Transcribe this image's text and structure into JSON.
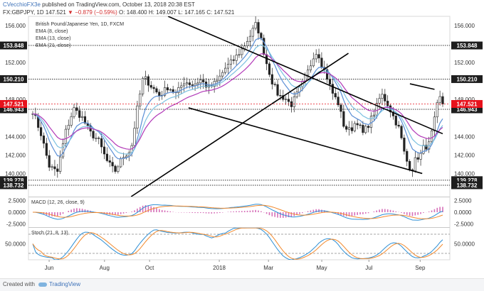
{
  "header": {
    "line1_user": "CVecchioFX3e",
    "line1_rest": "published on TradingView.com, October 13, 2018 20:38 EST",
    "symbol": "FX:GBPJPY, 1D",
    "last": "147.521",
    "change": "▼ −0.879 (−0.59%)",
    "ohlc": "O: 148.400 H: 149.007 L: 147.165 C: 147.521"
  },
  "legend": {
    "title": "British Pound/Japanese Yen, 1D, FXCM",
    "ema8": "EMA (8, close)",
    "ema13": "EMA (13, close)",
    "ema21": "EMA (21, close)"
  },
  "macd_label": "MACD (12, 26, close, 9)",
  "stoch_label": "Stoch (21, 8, 13)",
  "footer": {
    "created_with": "Created with",
    "brand": "TradingView"
  },
  "colors": {
    "candle": "#222222",
    "ema8": "#5b8fd6",
    "ema13": "#7cc0e0",
    "ema21": "#b23ab8",
    "macd_line": "#2d8fd5",
    "macd_signal": "#f28a2e",
    "macd_hist": "#d66fb8",
    "stoch_k": "#2d8fd5",
    "stoch_d": "#f28a2e",
    "current_price": "#e8121c",
    "level_box": "#222222",
    "trendline": "#000000"
  },
  "chart_data": [
    {
      "type": "candlestick",
      "x_ticks": [
        "Jun",
        "Aug",
        "Oct",
        "2018",
        "Mar",
        "May",
        "Jul",
        "Sep"
      ],
      "y_ticks": [
        "156.000",
        "152.000",
        "148.000",
        "144.000",
        "142.000",
        "140.000"
      ],
      "ylim": [
        137.5,
        157.0
      ],
      "price_levels": [
        {
          "value": 153.848,
          "label": "153.848"
        },
        {
          "value": 150.21,
          "label": "150.210"
        },
        {
          "value": 146.943,
          "label": "146.943"
        },
        {
          "value": 139.278,
          "label": "139.278"
        },
        {
          "value": 138.732,
          "label": "138.732"
        }
      ],
      "current_price": {
        "value": 147.521,
        "label": "147.521"
      },
      "trendlines": [
        {
          "from": [
            0.24,
            137.5
          ],
          "to": [
            0.77,
            153.0
          ]
        },
        {
          "from": [
            0.33,
            157.0
          ],
          "to": [
            1.0,
            144.3
          ]
        },
        {
          "from": [
            0.38,
            147.1
          ],
          "to": [
            0.95,
            140.0
          ]
        },
        {
          "from": [
            0.92,
            149.7
          ],
          "to": [
            0.98,
            149.1
          ]
        }
      ],
      "close_anchors": [
        [
          0.0,
          146.8
        ],
        [
          0.02,
          144.3
        ],
        [
          0.04,
          140.8
        ],
        [
          0.06,
          140.1
        ],
        [
          0.08,
          144.5
        ],
        [
          0.1,
          147.0
        ],
        [
          0.12,
          146.1
        ],
        [
          0.14,
          144.4
        ],
        [
          0.16,
          143.6
        ],
        [
          0.18,
          141.4
        ],
        [
          0.2,
          140.2
        ],
        [
          0.22,
          141.8
        ],
        [
          0.24,
          142.6
        ],
        [
          0.255,
          147.0
        ],
        [
          0.27,
          150.5
        ],
        [
          0.29,
          149.4
        ],
        [
          0.31,
          148.4
        ],
        [
          0.33,
          149.4
        ],
        [
          0.35,
          148.6
        ],
        [
          0.37,
          150.0
        ],
        [
          0.39,
          149.6
        ],
        [
          0.41,
          150.1
        ],
        [
          0.43,
          149.2
        ],
        [
          0.45,
          150.0
        ],
        [
          0.47,
          151.4
        ],
        [
          0.49,
          152.3
        ],
        [
          0.51,
          153.4
        ],
        [
          0.53,
          154.9
        ],
        [
          0.545,
          156.2
        ],
        [
          0.555,
          154.8
        ],
        [
          0.57,
          152.0
        ],
        [
          0.585,
          149.8
        ],
        [
          0.6,
          148.4
        ],
        [
          0.615,
          148.2
        ],
        [
          0.63,
          147.4
        ],
        [
          0.645,
          148.6
        ],
        [
          0.66,
          149.9
        ],
        [
          0.675,
          151.4
        ],
        [
          0.685,
          152.8
        ],
        [
          0.695,
          153.2
        ],
        [
          0.705,
          151.8
        ],
        [
          0.715,
          150.8
        ],
        [
          0.73,
          148.8
        ],
        [
          0.745,
          147.6
        ],
        [
          0.76,
          145.0
        ],
        [
          0.775,
          144.6
        ],
        [
          0.79,
          145.8
        ],
        [
          0.805,
          144.3
        ],
        [
          0.82,
          145.4
        ],
        [
          0.835,
          146.8
        ],
        [
          0.85,
          148.6
        ],
        [
          0.865,
          147.6
        ],
        [
          0.88,
          146.1
        ],
        [
          0.895,
          144.7
        ],
        [
          0.905,
          142.4
        ],
        [
          0.915,
          141.0
        ],
        [
          0.925,
          140.4
        ],
        [
          0.935,
          141.7
        ],
        [
          0.945,
          141.9
        ],
        [
          0.955,
          143.0
        ],
        [
          0.965,
          142.9
        ],
        [
          0.975,
          144.7
        ],
        [
          0.985,
          146.9
        ],
        [
          0.99,
          148.4
        ],
        [
          0.995,
          148.0
        ],
        [
          1.0,
          147.5
        ]
      ]
    },
    {
      "type": "line",
      "name": "MACD (12, 26, close, 9)",
      "y_ticks": [
        "2.5000",
        "0.0000",
        "-2.5000"
      ],
      "ylim": [
        -3.2,
        3.2
      ]
    },
    {
      "type": "line",
      "name": "Stoch (21, 8, 13)",
      "y_ticks": [
        "50.0000"
      ],
      "ylim": [
        0,
        100
      ],
      "bands": [
        80,
        20
      ]
    }
  ]
}
